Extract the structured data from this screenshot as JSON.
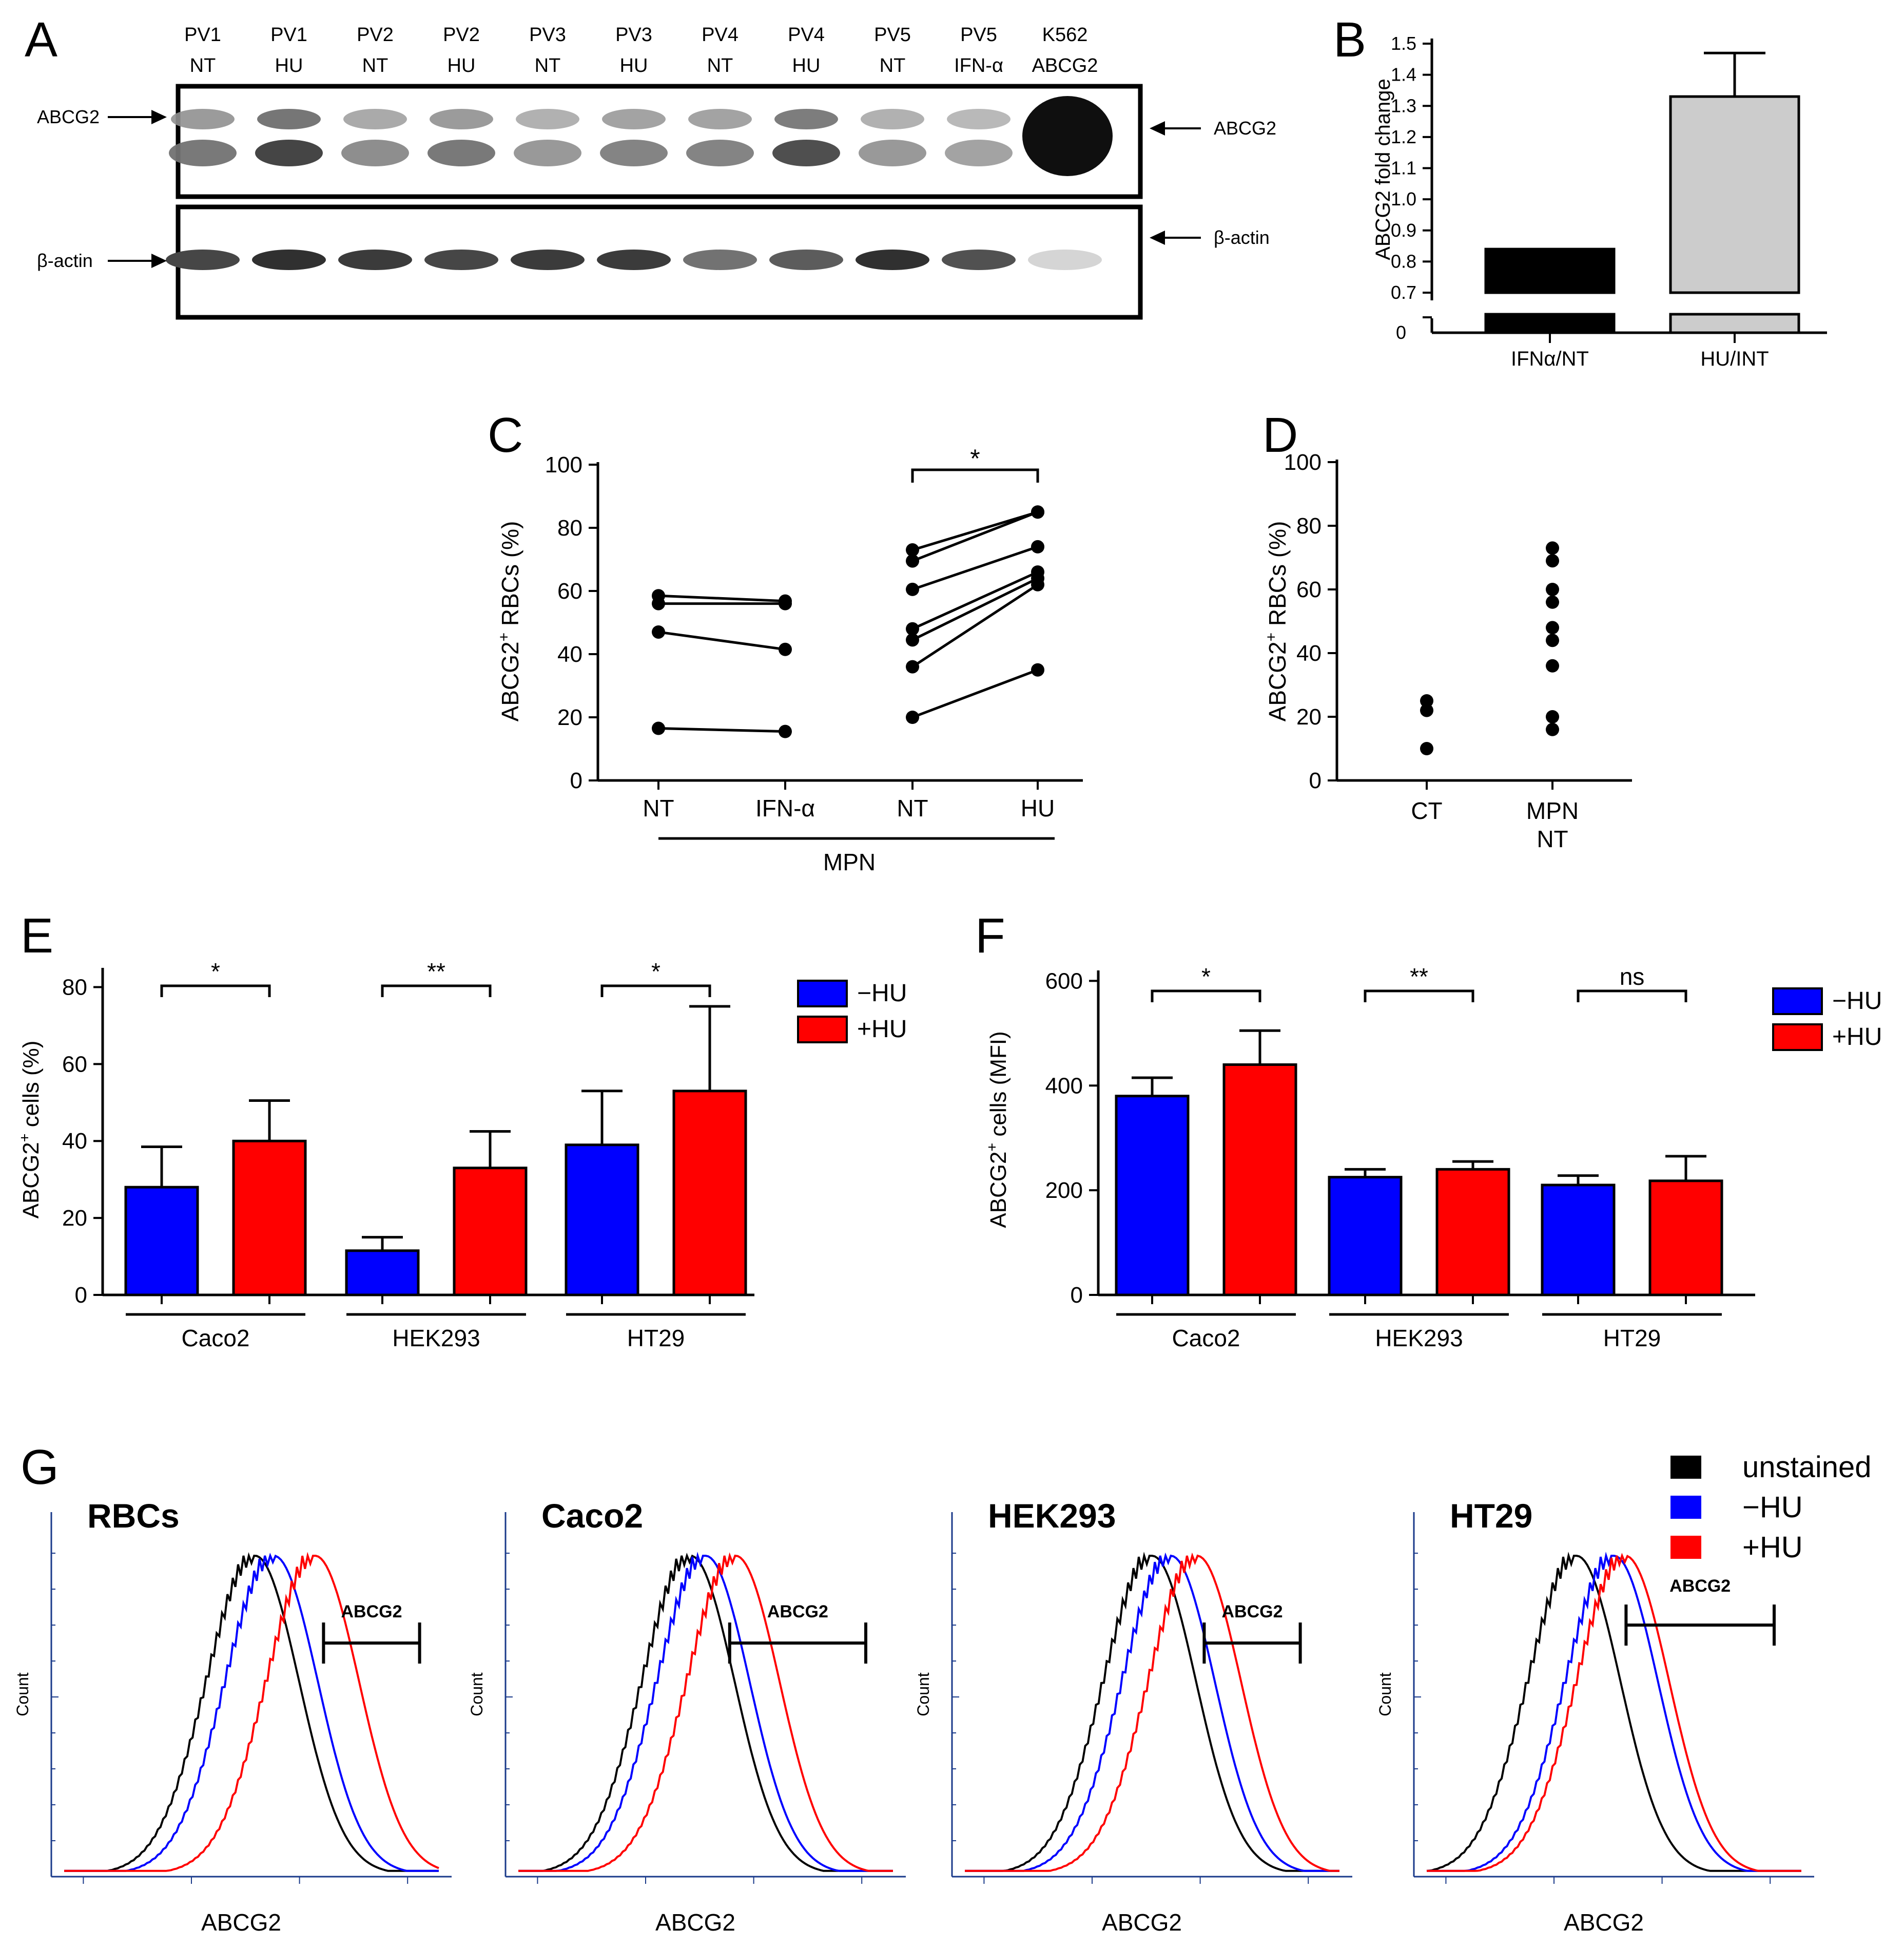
{
  "panel_letters": {
    "a": "A",
    "b": "B",
    "c": "C",
    "d": "D",
    "e": "E",
    "f": "F",
    "g": "G"
  },
  "western_blot": {
    "lanes": [
      {
        "top": "PV1",
        "bottom": "NT"
      },
      {
        "top": "PV1",
        "bottom": "HU"
      },
      {
        "top": "PV2",
        "bottom": "NT"
      },
      {
        "top": "PV2",
        "bottom": "HU"
      },
      {
        "top": "PV3",
        "bottom": "NT"
      },
      {
        "top": "PV3",
        "bottom": "HU"
      },
      {
        "top": "PV4",
        "bottom": "NT"
      },
      {
        "top": "PV4",
        "bottom": "HU"
      },
      {
        "top": "PV5",
        "bottom": "NT"
      },
      {
        "top": "PV5",
        "bottom": "IFN-α"
      },
      {
        "top": "K562",
        "bottom": "ABCG2"
      }
    ],
    "abcg2_intensity": [
      0.55,
      0.8,
      0.45,
      0.55,
      0.4,
      0.5,
      0.5,
      0.75,
      0.4,
      0.35,
      1.0
    ],
    "actin_intensity": [
      0.75,
      0.85,
      0.8,
      0.75,
      0.8,
      0.8,
      0.55,
      0.65,
      0.85,
      0.7,
      0.1
    ],
    "left_labels": {
      "abcg2": "ABCG2",
      "actin": "β-actin"
    },
    "right_labels": {
      "abcg2": "ABCG2",
      "actin": "β-actin"
    }
  },
  "chart_data": [
    {
      "id": "B",
      "type": "bar",
      "ylabel": "ABCG2 fold change",
      "categories": [
        "IFNα/NT",
        "HU/INT"
      ],
      "values": [
        0.84,
        1.33
      ],
      "errors": [
        0,
        0.14
      ],
      "colors": [
        "#000000",
        "#cccccc"
      ],
      "ylim": [
        0.7,
        1.5
      ],
      "yticks": [
        "0.7",
        "0.8",
        "0.9",
        "1.0",
        "1.1",
        "1.2",
        "1.3",
        "1.4",
        "1.5"
      ],
      "axis_break_label": "0"
    },
    {
      "id": "C",
      "type": "line",
      "ylabel": "ABCG2+ RBCs (%)",
      "ylabel_main": "ABCG2",
      "ylabel_sup": "+",
      "ylabel_rest": " RBCs (%)",
      "categories": [
        "NT",
        "IFN-α",
        "NT",
        "HU"
      ],
      "group_label": "MPN",
      "ylim": [
        0,
        100
      ],
      "yticks": [
        "0",
        "20",
        "40",
        "60",
        "80",
        "100"
      ],
      "pairs_ifn": [
        [
          58.5,
          56.8
        ],
        [
          56,
          56
        ],
        [
          47,
          41.5
        ],
        [
          16.5,
          15.5
        ]
      ],
      "pairs_hu": [
        [
          73,
          85
        ],
        [
          69.5,
          85
        ],
        [
          60.5,
          74
        ],
        [
          48,
          66
        ],
        [
          44.5,
          64
        ],
        [
          36,
          62
        ],
        [
          20,
          35
        ]
      ],
      "significance": "*"
    },
    {
      "id": "D",
      "type": "scatter",
      "ylabel_main": "ABCG2",
      "ylabel_sup": "+",
      "ylabel_rest": " RBCs (%)",
      "categories": [
        "CT",
        "MPN NT"
      ],
      "category_lines": [
        [
          "CT"
        ],
        [
          "MPN",
          "NT"
        ]
      ],
      "ylim": [
        0,
        100
      ],
      "yticks": [
        "0",
        "20",
        "40",
        "60",
        "80",
        "100"
      ],
      "groups": [
        [
          25,
          22,
          10
        ],
        [
          73,
          69,
          60,
          56,
          48,
          44,
          36,
          20,
          16
        ]
      ]
    },
    {
      "id": "E",
      "type": "bar",
      "ylabel_main": "ABCG2",
      "ylabel_sup": "+",
      "ylabel_rest": " cells (%)",
      "categories": [
        "Caco2",
        "HEK293",
        "HT29"
      ],
      "series": [
        {
          "name": "−HU",
          "color": "#0000ff",
          "values": [
            28,
            11.5,
            39
          ],
          "errors": [
            10.5,
            3.5,
            14
          ]
        },
        {
          "name": "+HU",
          "color": "#ff0000",
          "values": [
            40,
            33,
            53
          ],
          "errors": [
            10.5,
            9.5,
            22
          ]
        }
      ],
      "ylim": [
        0,
        85
      ],
      "yticks": [
        "0",
        "20",
        "40",
        "60",
        "80"
      ],
      "significance": [
        "*",
        "**",
        "*"
      ]
    },
    {
      "id": "F",
      "type": "bar",
      "ylabel_main": "ABCG2",
      "ylabel_sup": "+",
      "ylabel_rest": " cells (MFI)",
      "categories": [
        "Caco2",
        "HEK293",
        "HT29"
      ],
      "series": [
        {
          "name": "−HU",
          "color": "#0000ff",
          "values": [
            380,
            225,
            210
          ],
          "errors": [
            35,
            15,
            18
          ]
        },
        {
          "name": "+HU",
          "color": "#ff0000",
          "values": [
            440,
            240,
            218
          ],
          "errors": [
            65,
            15,
            47
          ]
        }
      ],
      "ylim": [
        0,
        620
      ],
      "yticks": [
        "0",
        "200",
        "400",
        "600"
      ],
      "significance": [
        "*",
        "**",
        "ns"
      ]
    },
    {
      "id": "G",
      "type": "histogram",
      "panels": [
        "RBCs",
        "Caco2",
        "HEK293",
        "HT29"
      ],
      "xlabel": "ABCG2",
      "ylabel": "Count",
      "gate_label": "ABCG2",
      "legend": [
        {
          "name": "unstained",
          "color": "#000000"
        },
        {
          "name": "−HU",
          "color": "#0000ff"
        },
        {
          "name": "+HU",
          "color": "#ff0000"
        }
      ],
      "peak_positions": [
        [
          0.51,
          0.56,
          0.67
        ],
        [
          0.46,
          0.5,
          0.58
        ],
        [
          0.5,
          0.55,
          0.62
        ],
        [
          0.4,
          0.5,
          0.53
        ]
      ],
      "gate_ranges": [
        [
          0.68,
          0.92
        ],
        [
          0.56,
          0.9
        ],
        [
          0.63,
          0.87
        ],
        [
          0.53,
          0.9
        ]
      ]
    }
  ]
}
